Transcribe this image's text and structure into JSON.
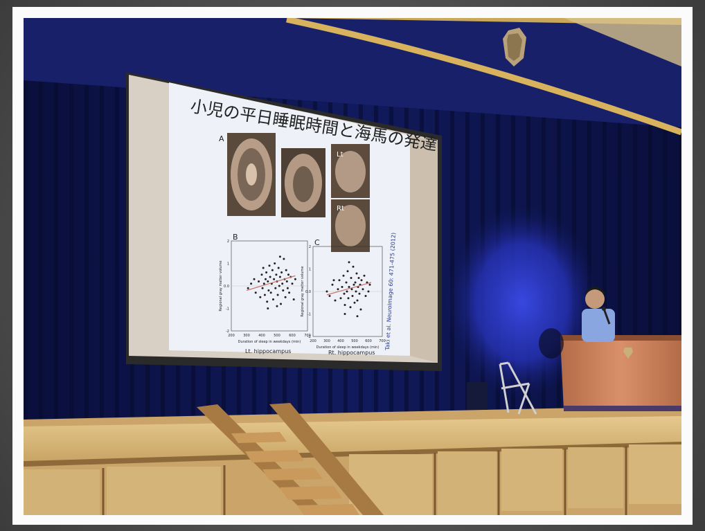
{
  "slide": {
    "title": "小児の平日睡眠時間と海馬の発達",
    "panel_a": "A",
    "panel_b": "B",
    "panel_c": "C",
    "mri_label_lt": "Lt",
    "mri_label_rt": "Rt",
    "ylabel": "Regional gray matter volume",
    "xlabel": "Duration of sleep in weekdays (min)",
    "caption_left": "Lt. hippocampus",
    "caption_right": "Rt. hippocampus",
    "citation": "Taki et al. NeuroImage 60: 471-475 (2012)"
  },
  "chart_data": [
    {
      "type": "scatter",
      "title": "B",
      "xlabel": "Duration of sleep in weekdays (min)",
      "ylabel": "Regional gray matter volume",
      "xlim": [
        200,
        700
      ],
      "ylim": [
        -2,
        2
      ],
      "xticks": [
        "200",
        "300",
        "400",
        "500",
        "600",
        "700"
      ],
      "yticks": [
        "2",
        "1",
        "0.0",
        "-1",
        "-2"
      ],
      "caption": "Lt. hippocampus",
      "points": [
        [
          310,
          -0.1
        ],
        [
          330,
          0.1
        ],
        [
          350,
          0.3
        ],
        [
          360,
          -0.3
        ],
        [
          380,
          0.2
        ],
        [
          390,
          -0.5
        ],
        [
          400,
          0.5
        ],
        [
          405,
          -0.1
        ],
        [
          410,
          0.8
        ],
        [
          415,
          0.1
        ],
        [
          420,
          -0.4
        ],
        [
          425,
          0.3
        ],
        [
          430,
          0.6
        ],
        [
          435,
          -0.7
        ],
        [
          440,
          0.2
        ],
        [
          445,
          -0.2
        ],
        [
          450,
          0.9
        ],
        [
          455,
          0.4
        ],
        [
          460,
          -0.3
        ],
        [
          465,
          0.1
        ],
        [
          470,
          0.7
        ],
        [
          475,
          -0.6
        ],
        [
          480,
          0.3
        ],
        [
          485,
          1.0
        ],
        [
          490,
          -0.1
        ],
        [
          495,
          0.5
        ],
        [
          500,
          0.2
        ],
        [
          505,
          -0.4
        ],
        [
          510,
          0.8
        ],
        [
          515,
          0.0
        ],
        [
          520,
          0.4
        ],
        [
          525,
          -0.8
        ],
        [
          530,
          0.6
        ],
        [
          535,
          0.1
        ],
        [
          540,
          -0.2
        ],
        [
          545,
          1.2
        ],
        [
          550,
          0.3
        ],
        [
          555,
          -0.5
        ],
        [
          560,
          0.7
        ],
        [
          565,
          0.2
        ],
        [
          570,
          -0.1
        ],
        [
          575,
          0.5
        ],
        [
          580,
          -0.3
        ],
        [
          590,
          0.4
        ],
        [
          600,
          0.1
        ],
        [
          610,
          -0.6
        ],
        [
          620,
          0.3
        ],
        [
          440,
          -1.0
        ],
        [
          500,
          -0.9
        ],
        [
          520,
          1.3
        ]
      ],
      "trend": [
        [
          300,
          -0.2
        ],
        [
          620,
          0.45
        ]
      ]
    },
    {
      "type": "scatter",
      "title": "C",
      "xlabel": "Duration of sleep in weekdays (min)",
      "ylabel": "Regional gray matter volume",
      "xlim": [
        200,
        700
      ],
      "ylim": [
        -2,
        2
      ],
      "xticks": [
        "200",
        "300",
        "400",
        "500",
        "600",
        "700"
      ],
      "yticks": [
        "2",
        "1",
        "0.0",
        "-1",
        "-2"
      ],
      "caption": "Rt. hippocampus",
      "points": [
        [
          300,
          0.0
        ],
        [
          320,
          -0.2
        ],
        [
          340,
          0.3
        ],
        [
          360,
          -0.4
        ],
        [
          380,
          0.1
        ],
        [
          390,
          0.5
        ],
        [
          400,
          -0.3
        ],
        [
          410,
          0.2
        ],
        [
          420,
          0.7
        ],
        [
          425,
          -0.1
        ],
        [
          430,
          -0.6
        ],
        [
          440,
          0.4
        ],
        [
          445,
          0.0
        ],
        [
          450,
          0.9
        ],
        [
          455,
          -0.3
        ],
        [
          460,
          0.2
        ],
        [
          470,
          -0.7
        ],
        [
          475,
          0.6
        ],
        [
          480,
          0.1
        ],
        [
          485,
          -0.2
        ],
        [
          490,
          1.1
        ],
        [
          495,
          0.3
        ],
        [
          500,
          -0.5
        ],
        [
          505,
          0.4
        ],
        [
          510,
          0.0
        ],
        [
          515,
          0.8
        ],
        [
          520,
          -0.4
        ],
        [
          525,
          0.2
        ],
        [
          530,
          0.6
        ],
        [
          535,
          -0.1
        ],
        [
          540,
          0.3
        ],
        [
          545,
          -0.8
        ],
        [
          550,
          0.5
        ],
        [
          560,
          0.1
        ],
        [
          570,
          0.7
        ],
        [
          580,
          -0.2
        ],
        [
          590,
          0.4
        ],
        [
          600,
          0.0
        ],
        [
          610,
          0.3
        ],
        [
          460,
          1.3
        ],
        [
          430,
          -1.0
        ],
        [
          520,
          -1.1
        ],
        [
          350,
          0.5
        ]
      ],
      "trend": [
        [
          300,
          -0.15
        ],
        [
          620,
          0.4
        ]
      ]
    }
  ],
  "colors": {
    "curtain": "#0e1550",
    "valance": "#1a2370",
    "spotlight": "#2d3bd0",
    "stage_wood": "#d9b878",
    "podium": "#c97f5a",
    "screen": "#e9ecf2"
  }
}
